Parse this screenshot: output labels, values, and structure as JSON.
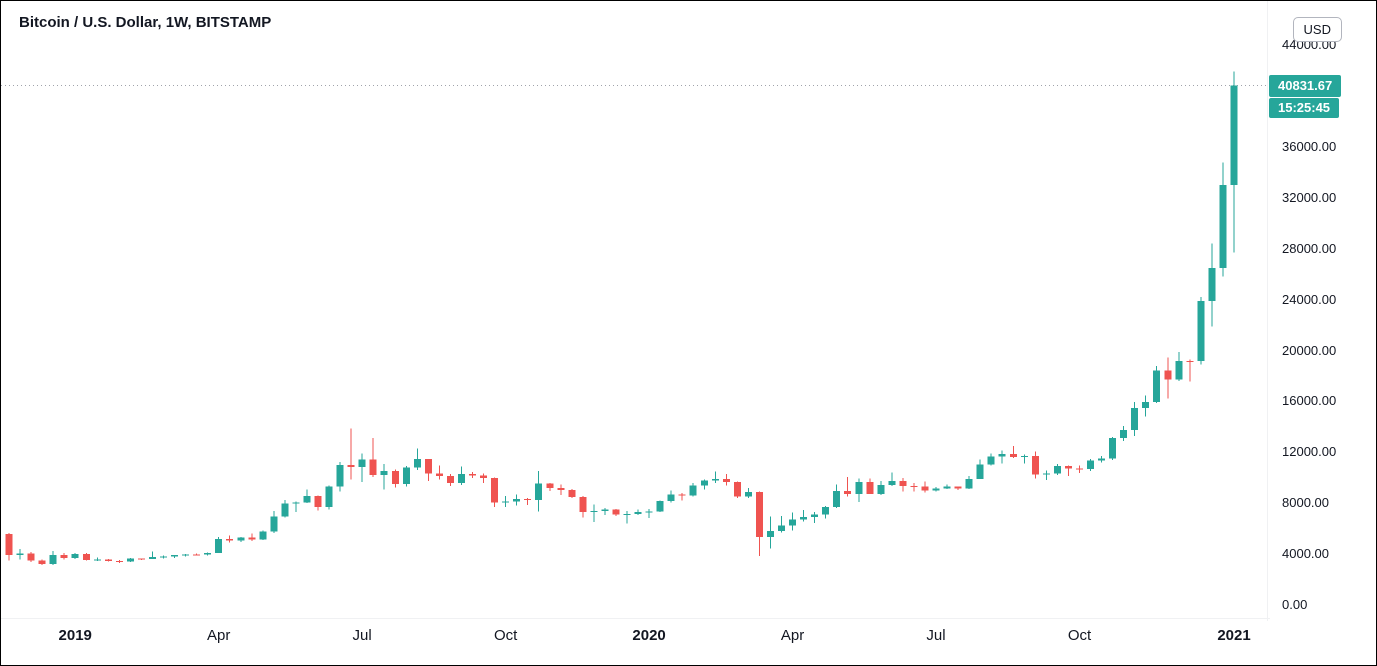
{
  "header": {
    "symbol_title": "Bitcoin / U.S. Dollar, 1W, BITSTAMP"
  },
  "price_axis": {
    "currency_button": "USD",
    "ticks": [
      {
        "value": 0,
        "label": "0.00"
      },
      {
        "value": 4000,
        "label": "4000.00"
      },
      {
        "value": 8000,
        "label": "8000.00"
      },
      {
        "value": 12000,
        "label": "12000.00"
      },
      {
        "value": 16000,
        "label": "16000.00"
      },
      {
        "value": 20000,
        "label": "20000.00"
      },
      {
        "value": 24000,
        "label": "24000.00"
      },
      {
        "value": 28000,
        "label": "28000.00"
      },
      {
        "value": 32000,
        "label": "32000.00"
      },
      {
        "value": 36000,
        "label": "36000.00"
      },
      {
        "value": 44000,
        "label": "44000.00"
      }
    ],
    "last_price": {
      "value": 40831.67,
      "label": "40831.67",
      "countdown": "15:25:45"
    }
  },
  "time_axis": {
    "labels": [
      {
        "text": "2019",
        "index": 6,
        "year": true
      },
      {
        "text": "Apr",
        "index": 19,
        "year": false
      },
      {
        "text": "Jul",
        "index": 32,
        "year": false
      },
      {
        "text": "Oct",
        "index": 45,
        "year": false
      },
      {
        "text": "2020",
        "index": 58,
        "year": true
      },
      {
        "text": "Apr",
        "index": 71,
        "year": false
      },
      {
        "text": "Jul",
        "index": 84,
        "year": false
      },
      {
        "text": "Oct",
        "index": 97,
        "year": false
      },
      {
        "text": "2021",
        "index": 111,
        "year": true
      }
    ]
  },
  "colors": {
    "up": "#26a69a",
    "down": "#ef5350",
    "badge_bg": "#26a69a",
    "countdown_bg": "#26a69a",
    "text": "#131722",
    "last_price_line": "#a0a3ab"
  },
  "chart_data": {
    "type": "candlestick",
    "title": "Bitcoin / U.S. Dollar, 1W, BITSTAMP",
    "interval": "1W",
    "exchange": "BITSTAMP",
    "unit": "USD",
    "last_price": 40831.67,
    "y_axis": {
      "min": 0,
      "max": 44500,
      "tick_interval": 4000,
      "visible_ticks": [
        0,
        4000,
        8000,
        12000,
        16000,
        20000,
        24000,
        28000,
        32000,
        36000,
        44000
      ]
    },
    "x_axis": {
      "start": "2018-11-19",
      "end": "2021-01-04",
      "period": "weekly"
    },
    "columns": [
      "week_start",
      "open",
      "high",
      "low",
      "close"
    ],
    "candles": [
      [
        "2018-11-19",
        5590,
        5650,
        3480,
        3930
      ],
      [
        "2018-11-26",
        3930,
        4410,
        3590,
        4060
      ],
      [
        "2018-12-03",
        4060,
        4180,
        3370,
        3480
      ],
      [
        "2018-12-10",
        3480,
        3560,
        3150,
        3210
      ],
      [
        "2018-12-17",
        3210,
        4240,
        3160,
        3920
      ],
      [
        "2018-12-24",
        3920,
        4080,
        3570,
        3700
      ],
      [
        "2018-12-31",
        3700,
        4090,
        3630,
        4020
      ],
      [
        "2019-01-07",
        4020,
        4070,
        3500,
        3530
      ],
      [
        "2019-01-14",
        3530,
        3740,
        3460,
        3560
      ],
      [
        "2019-01-21",
        3560,
        3600,
        3410,
        3470
      ],
      [
        "2019-01-28",
        3470,
        3520,
        3320,
        3410
      ],
      [
        "2019-02-04",
        3410,
        3680,
        3370,
        3650
      ],
      [
        "2019-02-11",
        3650,
        3670,
        3530,
        3610
      ],
      [
        "2019-02-18",
        3610,
        4190,
        3600,
        3760
      ],
      [
        "2019-02-25",
        3760,
        3890,
        3660,
        3820
      ],
      [
        "2019-03-04",
        3820,
        3940,
        3710,
        3920
      ],
      [
        "2019-03-11",
        3920,
        4010,
        3830,
        3980
      ],
      [
        "2019-03-18",
        3980,
        4040,
        3900,
        3970
      ],
      [
        "2019-03-25",
        3970,
        4120,
        3880,
        4100
      ],
      [
        "2019-04-01",
        4100,
        5340,
        4080,
        5190
      ],
      [
        "2019-04-08",
        5190,
        5460,
        4910,
        5060
      ],
      [
        "2019-04-15",
        5060,
        5360,
        4950,
        5300
      ],
      [
        "2019-04-22",
        5300,
        5620,
        5050,
        5150
      ],
      [
        "2019-04-29",
        5150,
        5860,
        5100,
        5770
      ],
      [
        "2019-05-06",
        5770,
        7370,
        5640,
        6970
      ],
      [
        "2019-05-13",
        6970,
        8260,
        6890,
        7990
      ],
      [
        "2019-05-20",
        7990,
        8150,
        7320,
        8050
      ],
      [
        "2019-05-27",
        8050,
        9060,
        8020,
        8580
      ],
      [
        "2019-06-03",
        8580,
        8600,
        7430,
        7690
      ],
      [
        "2019-06-10",
        7690,
        9390,
        7510,
        9320
      ],
      [
        "2019-06-17",
        9320,
        11250,
        8940,
        11000
      ],
      [
        "2019-06-24",
        11000,
        13880,
        9870,
        10850
      ],
      [
        "2019-07-01",
        10850,
        11900,
        9660,
        11450
      ],
      [
        "2019-07-08",
        11450,
        13130,
        10060,
        10220
      ],
      [
        "2019-07-15",
        10220,
        11070,
        9070,
        10530
      ],
      [
        "2019-07-22",
        10530,
        10650,
        9230,
        9530
      ],
      [
        "2019-07-29",
        9530,
        10940,
        9320,
        10810
      ],
      [
        "2019-08-05",
        10810,
        12320,
        10610,
        11460
      ],
      [
        "2019-08-12",
        11460,
        11480,
        9760,
        10330
      ],
      [
        "2019-08-19",
        10330,
        10950,
        9850,
        10130
      ],
      [
        "2019-08-26",
        10130,
        10280,
        9350,
        9590
      ],
      [
        "2019-09-02",
        9590,
        10900,
        9450,
        10310
      ],
      [
        "2019-09-09",
        10310,
        10460,
        9990,
        10170
      ],
      [
        "2019-09-16",
        10170,
        10350,
        9600,
        9990
      ],
      [
        "2019-09-23",
        9990,
        10030,
        7700,
        8040
      ],
      [
        "2019-09-30",
        8040,
        8560,
        7710,
        8150
      ],
      [
        "2019-10-07",
        8150,
        8700,
        7810,
        8320
      ],
      [
        "2019-10-14",
        8320,
        8430,
        7850,
        8250
      ],
      [
        "2019-10-21",
        8250,
        10540,
        7360,
        9550
      ],
      [
        "2019-10-28",
        9550,
        9600,
        8980,
        9200
      ],
      [
        "2019-11-04",
        9200,
        9470,
        8660,
        9040
      ],
      [
        "2019-11-11",
        9040,
        9100,
        8430,
        8500
      ],
      [
        "2019-11-18",
        8500,
        8560,
        6860,
        7300
      ],
      [
        "2019-11-25",
        7300,
        7880,
        6520,
        7400
      ],
      [
        "2019-12-02",
        7400,
        7640,
        7070,
        7510
      ],
      [
        "2019-12-09",
        7510,
        7530,
        7000,
        7120
      ],
      [
        "2019-12-16",
        7120,
        7380,
        6410,
        7150
      ],
      [
        "2019-12-23",
        7150,
        7500,
        7070,
        7300
      ],
      [
        "2019-12-30",
        7300,
        7530,
        6850,
        7350
      ],
      [
        "2020-01-06",
        7350,
        8200,
        7320,
        8180
      ],
      [
        "2020-01-13",
        8180,
        9010,
        8050,
        8700
      ],
      [
        "2020-01-20",
        8700,
        8790,
        8210,
        8600
      ],
      [
        "2020-01-27",
        8600,
        9570,
        8520,
        9380
      ],
      [
        "2020-02-03",
        9380,
        9860,
        9070,
        9800
      ],
      [
        "2020-02-10",
        9800,
        10500,
        9600,
        9920
      ],
      [
        "2020-02-17",
        9920,
        10290,
        9390,
        9670
      ],
      [
        "2020-02-24",
        9670,
        9690,
        8430,
        8530
      ],
      [
        "2020-03-02",
        8530,
        9190,
        8420,
        8900
      ],
      [
        "2020-03-09",
        8900,
        8910,
        3860,
        5360
      ],
      [
        "2020-03-16",
        5360,
        6940,
        4450,
        5820
      ],
      [
        "2020-03-23",
        5820,
        6980,
        5680,
        6240
      ],
      [
        "2020-03-30",
        6240,
        7290,
        5870,
        6740
      ],
      [
        "2020-04-06",
        6740,
        7470,
        6570,
        6910
      ],
      [
        "2020-04-13",
        6910,
        7300,
        6450,
        7130
      ],
      [
        "2020-04-20",
        7130,
        7780,
        6780,
        7700
      ],
      [
        "2020-04-27",
        7700,
        9460,
        7640,
        8970
      ],
      [
        "2020-05-04",
        8970,
        10070,
        8530,
        8730
      ],
      [
        "2020-05-11",
        8730,
        9950,
        8110,
        9670
      ],
      [
        "2020-05-18",
        9670,
        9950,
        8720,
        8720
      ],
      [
        "2020-05-25",
        8720,
        9740,
        8660,
        9450
      ],
      [
        "2020-06-01",
        9450,
        10430,
        9350,
        9750
      ],
      [
        "2020-06-08",
        9750,
        9990,
        8940,
        9340
      ],
      [
        "2020-06-15",
        9340,
        9590,
        8910,
        9300
      ],
      [
        "2020-06-22",
        9300,
        9700,
        8830,
        9010
      ],
      [
        "2020-06-29",
        9010,
        9290,
        8930,
        9140
      ],
      [
        "2020-07-06",
        9140,
        9480,
        9110,
        9300
      ],
      [
        "2020-07-13",
        9300,
        9330,
        9050,
        9170
      ],
      [
        "2020-07-20",
        9170,
        10150,
        9100,
        9910
      ],
      [
        "2020-07-27",
        9910,
        11440,
        9900,
        11060
      ],
      [
        "2020-08-03",
        11060,
        11910,
        10960,
        11680
      ],
      [
        "2020-08-10",
        11680,
        12160,
        11130,
        11850
      ],
      [
        "2020-08-17",
        11850,
        12480,
        11550,
        11650
      ],
      [
        "2020-08-24",
        11650,
        11820,
        11140,
        11700
      ],
      [
        "2020-08-31",
        11700,
        12060,
        9940,
        10250
      ],
      [
        "2020-09-07",
        10250,
        10590,
        9820,
        10330
      ],
      [
        "2020-09-14",
        10330,
        11090,
        10210,
        10920
      ],
      [
        "2020-09-21",
        10920,
        10960,
        10140,
        10720
      ],
      [
        "2020-09-28",
        10720,
        10950,
        10390,
        10690
      ],
      [
        "2020-10-05",
        10690,
        11480,
        10550,
        11370
      ],
      [
        "2020-10-12",
        11370,
        11720,
        11200,
        11500
      ],
      [
        "2020-10-19",
        11500,
        13200,
        11400,
        13120
      ],
      [
        "2020-10-26",
        13120,
        14070,
        12900,
        13760
      ],
      [
        "2020-11-02",
        13760,
        15960,
        13290,
        15480
      ],
      [
        "2020-11-09",
        15480,
        16480,
        14810,
        15950
      ],
      [
        "2020-11-16",
        15950,
        18770,
        15860,
        18420
      ],
      [
        "2020-11-23",
        18420,
        19470,
        16230,
        17720
      ],
      [
        "2020-11-30",
        17720,
        19900,
        17610,
        19170
      ],
      [
        "2020-12-07",
        19170,
        19300,
        17570,
        19160
      ],
      [
        "2020-12-14",
        19160,
        24200,
        18900,
        23900
      ],
      [
        "2020-12-21",
        23900,
        28400,
        21900,
        26480
      ],
      [
        "2020-12-28",
        26480,
        34800,
        25830,
        33000
      ],
      [
        "2021-01-04",
        33000,
        41950,
        27700,
        40831.67
      ]
    ]
  }
}
